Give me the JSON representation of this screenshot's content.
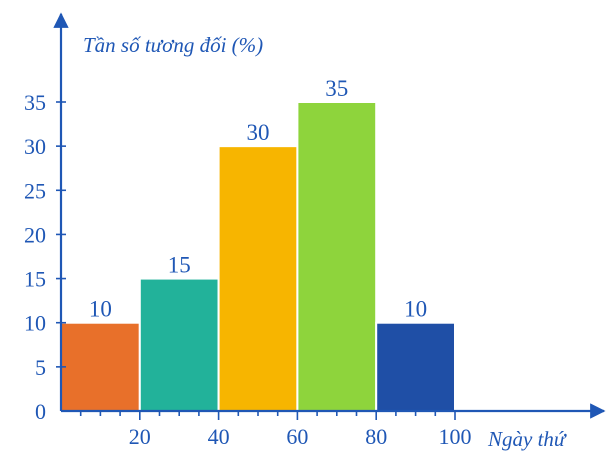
{
  "chart_data": {
    "type": "bar",
    "bins": [
      {
        "from": 0,
        "to": 20,
        "value": 10,
        "color": "#e8702a"
      },
      {
        "from": 20,
        "to": 40,
        "value": 15,
        "color": "#22b29a"
      },
      {
        "from": 40,
        "to": 60,
        "value": 30,
        "color": "#f7b500"
      },
      {
        "from": 60,
        "to": 80,
        "value": 35,
        "color": "#8ed43c"
      },
      {
        "from": 80,
        "to": 100,
        "value": 10,
        "color": "#1f4fa6"
      }
    ],
    "data_labels": [
      "10",
      "15",
      "30",
      "35",
      "10"
    ],
    "ylabel": "Tần số tương đối (%)",
    "xlabel": "Ngày thứ",
    "y_ticks": [
      "0",
      "5",
      "10",
      "15",
      "20",
      "25",
      "30",
      "35"
    ],
    "x_ticks": [
      "20",
      "40",
      "60",
      "80",
      "100"
    ],
    "xlim": [
      0,
      100
    ],
    "ylim": [
      0,
      35
    ],
    "grid": false,
    "axis_color": "#1f57b5"
  }
}
